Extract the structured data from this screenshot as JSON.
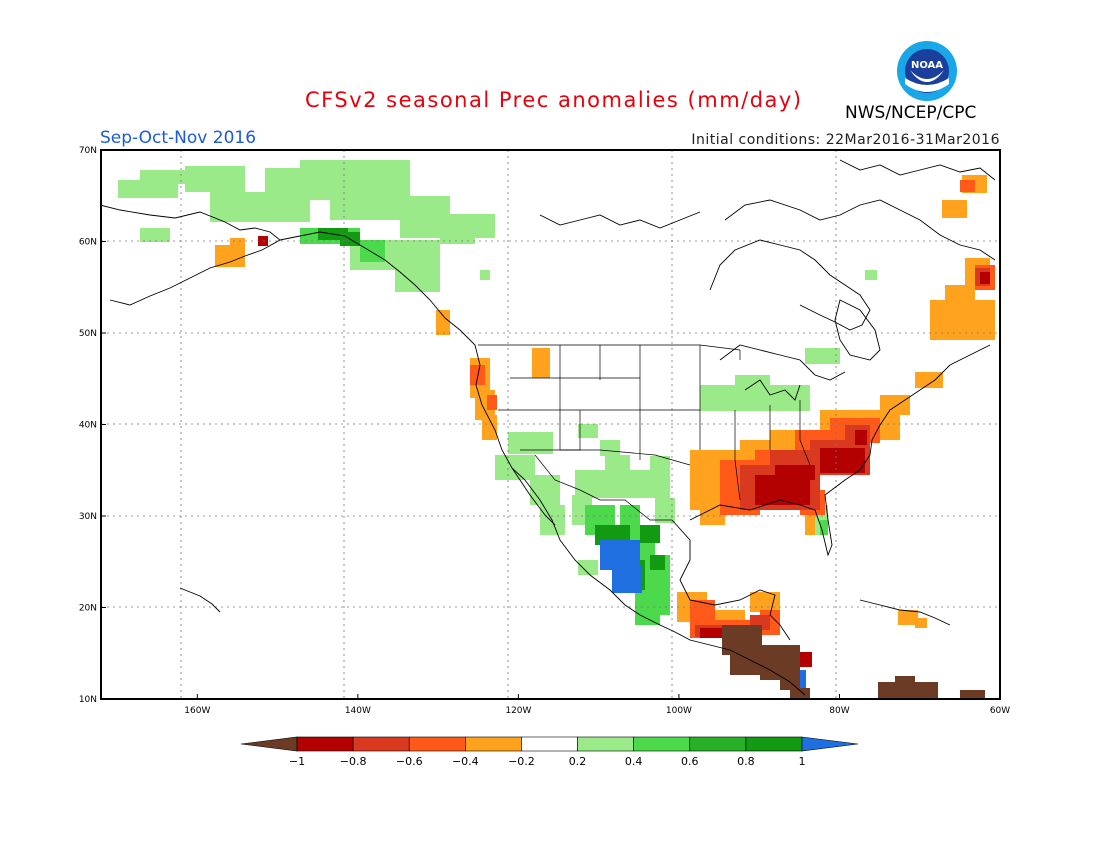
{
  "title": "CFSv2 seasonal Prec anomalies (mm/day)",
  "season": "Sep-Oct-Nov 2016",
  "initial_conditions": "Initial conditions: 22Mar2016-31Mar2016",
  "organization": "NWS/NCEP/CPC",
  "logo_text": "NOAA",
  "map": {
    "lon_range": [
      -172,
      -60
    ],
    "lat_range": [
      10,
      70
    ],
    "lon_ticks": [
      {
        "value": -160,
        "label": "160W"
      },
      {
        "value": -140,
        "label": "140W"
      },
      {
        "value": -120,
        "label": "120W"
      },
      {
        "value": -100,
        "label": "100W"
      },
      {
        "value": -80,
        "label": "80W"
      },
      {
        "value": -60,
        "label": "60W"
      }
    ],
    "lat_ticks": [
      {
        "value": 10,
        "label": "10N"
      },
      {
        "value": 20,
        "label": "20N"
      },
      {
        "value": 30,
        "label": "30N"
      },
      {
        "value": 40,
        "label": "40N"
      },
      {
        "value": 50,
        "label": "50N"
      },
      {
        "value": 60,
        "label": "60N"
      },
      {
        "value": 70,
        "label": "70N"
      }
    ],
    "grid": true
  },
  "colorbar": {
    "labels": [
      "-1",
      "-0.8",
      "-0.6",
      "-0.4",
      "-0.2",
      "0.2",
      "0.4",
      "0.6",
      "0.8",
      "1"
    ],
    "colors": [
      "#6b3b26",
      "#b30000",
      "#d93a1f",
      "#ff5a19",
      "#ffa21d",
      "#ffffff",
      "#9bea8a",
      "#4cda4c",
      "#28b128",
      "#129a12",
      "#1f6fe0"
    ]
  }
}
